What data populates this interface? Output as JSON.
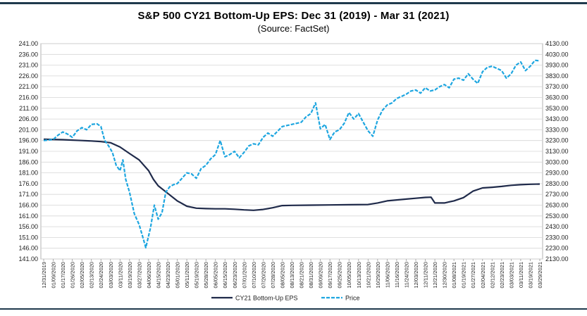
{
  "chart_data": {
    "type": "line",
    "title": "S&P 500 CY21 Bottom-Up EPS: Dec 31 (2019) - Mar 31 (2021)",
    "subtitle": "(Source: FactSet)",
    "y_left": {
      "min": 141,
      "max": 241,
      "step": 5,
      "tick_labels": [
        "141.00",
        "146.00",
        "151.00",
        "156.00",
        "161.00",
        "166.00",
        "171.00",
        "176.00",
        "181.00",
        "186.00",
        "191.00",
        "196.00",
        "201.00",
        "206.00",
        "211.00",
        "216.00",
        "221.00",
        "226.00",
        "231.00",
        "236.00",
        "241.00"
      ]
    },
    "y_right": {
      "min": 2130,
      "max": 4130,
      "step": 100,
      "tick_labels": [
        "2130.00",
        "2230.00",
        "2330.00",
        "2430.00",
        "2530.00",
        "2630.00",
        "2730.00",
        "2830.00",
        "2930.00",
        "3030.00",
        "3130.00",
        "3230.00",
        "3330.00",
        "3430.00",
        "3530.00",
        "3630.00",
        "3730.00",
        "3830.00",
        "3930.00",
        "4030.00",
        "4130.00"
      ]
    },
    "x_tick_labels": [
      "12/31/2019",
      "01/09/2020",
      "01/17/2020",
      "01/26/2020",
      "02/05/2020",
      "02/13/2020",
      "02/24/2020",
      "03/03/2020",
      "03/11/2020",
      "03/19/2020",
      "03/27/2020",
      "04/06/2020",
      "04/15/2020",
      "04/23/2020",
      "05/01/2020",
      "05/11/2020",
      "05/19/2020",
      "05/28/2020",
      "06/05/2020",
      "06/15/2020",
      "06/23/2020",
      "07/01/2020",
      "07/10/2020",
      "07/20/2020",
      "07/28/2020",
      "08/05/2020",
      "08/13/2020",
      "08/21/2020",
      "08/31/2020",
      "09/09/2020",
      "09/17/2020",
      "09/25/2020",
      "10/05/2020",
      "10/13/2020",
      "10/21/2020",
      "10/29/2020",
      "11/06/2020",
      "11/16/2020",
      "11/24/2020",
      "12/03/2020",
      "12/11/2020",
      "12/21/2020",
      "12/30/2020",
      "01/08/2021",
      "01/19/2021",
      "01/27/2021",
      "02/04/2021",
      "02/12/2021",
      "02/23/2021",
      "03/03/2021",
      "03/11/2021",
      "03/19/2021",
      "03/29/2021"
    ],
    "grid": true,
    "legend_position": "bottom",
    "series": [
      {
        "name": "CY21 Bottom-Up EPS",
        "axis": "left",
        "style": "solid",
        "color": "#1f2a4a",
        "points": [
          [
            0,
            196.6
          ],
          [
            2,
            196.4
          ],
          [
            4,
            196.0
          ],
          [
            5,
            195.8
          ],
          [
            6,
            195.5
          ],
          [
            7,
            195.0
          ],
          [
            8,
            193.0
          ],
          [
            9,
            190.0
          ],
          [
            10,
            187.0
          ],
          [
            11,
            182.0
          ],
          [
            11.5,
            178.0
          ],
          [
            12,
            175.0
          ],
          [
            13,
            171.5
          ],
          [
            14,
            168.0
          ],
          [
            15,
            165.5
          ],
          [
            16,
            164.6
          ],
          [
            17,
            164.4
          ],
          [
            18,
            164.3
          ],
          [
            19,
            164.3
          ],
          [
            20,
            164.1
          ],
          [
            21,
            163.8
          ],
          [
            22,
            163.6
          ],
          [
            23,
            164.0
          ],
          [
            24,
            164.8
          ],
          [
            25,
            165.8
          ],
          [
            26,
            165.9
          ],
          [
            28,
            166.0
          ],
          [
            30,
            166.1
          ],
          [
            32,
            166.2
          ],
          [
            34,
            166.3
          ],
          [
            35,
            167.0
          ],
          [
            36,
            168.0
          ],
          [
            38,
            168.8
          ],
          [
            39,
            169.2
          ],
          [
            40,
            169.6
          ],
          [
            40.6,
            169.7
          ],
          [
            41,
            167.0
          ],
          [
            42,
            167.0
          ],
          [
            43,
            168.0
          ],
          [
            44,
            169.5
          ],
          [
            45,
            172.5
          ],
          [
            46,
            174.0
          ],
          [
            47,
            174.3
          ],
          [
            48,
            174.7
          ],
          [
            49,
            175.2
          ],
          [
            50,
            175.5
          ],
          [
            51,
            175.7
          ],
          [
            52,
            175.8
          ]
        ]
      },
      {
        "name": "Price",
        "axis": "right",
        "style": "dashed",
        "color": "#1ea6e0",
        "points": [
          [
            0,
            3230
          ],
          [
            1,
            3240
          ],
          [
            1.5,
            3280
          ],
          [
            2,
            3310
          ],
          [
            2.5,
            3290
          ],
          [
            3,
            3260
          ],
          [
            3.5,
            3320
          ],
          [
            4,
            3350
          ],
          [
            4.5,
            3330
          ],
          [
            5,
            3380
          ],
          [
            5.6,
            3385
          ],
          [
            6,
            3360
          ],
          [
            6.4,
            3230
          ],
          [
            6.8,
            3180
          ],
          [
            7.2,
            3120
          ],
          [
            7.6,
            3000
          ],
          [
            8,
            2950
          ],
          [
            8.3,
            3050
          ],
          [
            8.6,
            2870
          ],
          [
            9,
            2750
          ],
          [
            9.5,
            2550
          ],
          [
            10,
            2450
          ],
          [
            10.4,
            2330
          ],
          [
            10.7,
            2235
          ],
          [
            11.2,
            2420
          ],
          [
            11.6,
            2630
          ],
          [
            12,
            2500
          ],
          [
            12.4,
            2560
          ],
          [
            12.8,
            2750
          ],
          [
            13.2,
            2800
          ],
          [
            13.6,
            2820
          ],
          [
            14,
            2830
          ],
          [
            14.5,
            2880
          ],
          [
            15,
            2930
          ],
          [
            15.5,
            2920
          ],
          [
            16,
            2880
          ],
          [
            16.5,
            2970
          ],
          [
            17,
            3000
          ],
          [
            17.5,
            3060
          ],
          [
            18,
            3100
          ],
          [
            18.5,
            3230
          ],
          [
            19,
            3080
          ],
          [
            19.5,
            3100
          ],
          [
            20,
            3130
          ],
          [
            20.5,
            3070
          ],
          [
            21,
            3120
          ],
          [
            21.5,
            3180
          ],
          [
            22,
            3200
          ],
          [
            22.5,
            3190
          ],
          [
            23,
            3260
          ],
          [
            23.5,
            3300
          ],
          [
            24,
            3270
          ],
          [
            25,
            3360
          ],
          [
            26,
            3380
          ],
          [
            27,
            3400
          ],
          [
            27.5,
            3450
          ],
          [
            28,
            3480
          ],
          [
            28.5,
            3580
          ],
          [
            29,
            3340
          ],
          [
            29.5,
            3380
          ],
          [
            30,
            3240
          ],
          [
            30.5,
            3310
          ],
          [
            31,
            3330
          ],
          [
            31.5,
            3390
          ],
          [
            32,
            3490
          ],
          [
            32.5,
            3430
          ],
          [
            33,
            3480
          ],
          [
            33.5,
            3400
          ],
          [
            34,
            3320
          ],
          [
            34.5,
            3270
          ],
          [
            35,
            3420
          ],
          [
            35.5,
            3510
          ],
          [
            36,
            3560
          ],
          [
            36.5,
            3580
          ],
          [
            37,
            3620
          ],
          [
            37.5,
            3640
          ],
          [
            38,
            3660
          ],
          [
            38.5,
            3690
          ],
          [
            39,
            3700
          ],
          [
            39.5,
            3670
          ],
          [
            40,
            3720
          ],
          [
            40.5,
            3690
          ],
          [
            41,
            3700
          ],
          [
            41.5,
            3730
          ],
          [
            42,
            3750
          ],
          [
            42.5,
            3720
          ],
          [
            43,
            3800
          ],
          [
            43.5,
            3810
          ],
          [
            44,
            3790
          ],
          [
            44.5,
            3850
          ],
          [
            45,
            3800
          ],
          [
            45.5,
            3760
          ],
          [
            46,
            3870
          ],
          [
            46.5,
            3910
          ],
          [
            47,
            3920
          ],
          [
            47.5,
            3900
          ],
          [
            48,
            3880
          ],
          [
            48.5,
            3810
          ],
          [
            49,
            3850
          ],
          [
            49.5,
            3930
          ],
          [
            50,
            3960
          ],
          [
            50.5,
            3880
          ],
          [
            51,
            3920
          ],
          [
            51.5,
            3975
          ],
          [
            52,
            3970
          ]
        ]
      }
    ]
  }
}
